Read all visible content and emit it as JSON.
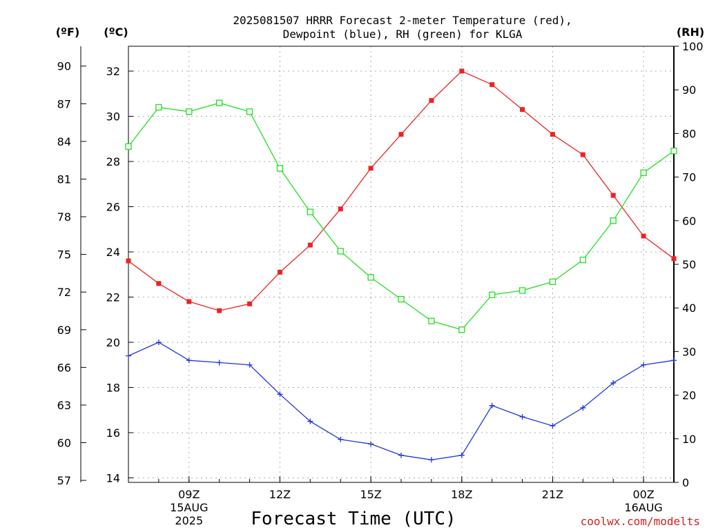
{
  "chart_data": {
    "type": "line",
    "title_lines": [
      "2025081507 HRRR Forecast 2-meter Temperature (red),",
      "Dewpoint (blue), RH (green) for KLGA"
    ],
    "xlabel": "Forecast Time (UTC)",
    "credit": "coolwx.com/modelts",
    "unit_labels": {
      "fahrenheit": "(ºF)",
      "celsius": "(ºC)",
      "rh": "(RH)"
    },
    "x_hours_utc": [
      7,
      8,
      9,
      10,
      11,
      12,
      13,
      14,
      15,
      16,
      17,
      18,
      19,
      20,
      21,
      22,
      23,
      24,
      25
    ],
    "xlim": [
      7,
      25
    ],
    "x_ticks": [
      {
        "hour": 9,
        "lines": [
          "09Z",
          "15AUG",
          "2025"
        ]
      },
      {
        "hour": 12,
        "lines": [
          "12Z"
        ]
      },
      {
        "hour": 15,
        "lines": [
          "15Z"
        ]
      },
      {
        "hour": 18,
        "lines": [
          "18Z"
        ]
      },
      {
        "hour": 21,
        "lines": [
          "21Z"
        ]
      },
      {
        "hour": 24,
        "lines": [
          "00Z",
          "16AUG"
        ]
      }
    ],
    "ylim_celsius": [
      13.8,
      33.1
    ],
    "celsius_ticks": [
      14,
      16,
      18,
      20,
      22,
      24,
      26,
      28,
      30,
      32
    ],
    "fahrenheit_ticks": [
      57,
      60,
      63,
      66,
      69,
      72,
      75,
      78,
      81,
      84,
      87,
      90
    ],
    "ylim_rh": [
      0,
      100
    ],
    "rh_ticks": [
      0,
      10,
      20,
      30,
      40,
      50,
      60,
      70,
      80,
      90,
      100
    ],
    "grid": true,
    "series": [
      {
        "name": "Temperature",
        "axis": "celsius",
        "color": "#ee2222",
        "marker": "filled-square",
        "values": [
          23.6,
          22.6,
          21.8,
          21.4,
          21.7,
          23.1,
          24.3,
          25.9,
          27.7,
          29.2,
          30.7,
          32.0,
          31.4,
          30.3,
          29.2,
          28.3,
          26.5,
          24.7,
          23.7
        ]
      },
      {
        "name": "Dewpoint",
        "axis": "celsius",
        "color": "#2233dd",
        "marker": "plus",
        "values": [
          19.4,
          20.0,
          19.2,
          19.1,
          19.0,
          17.7,
          16.5,
          15.7,
          15.5,
          15.0,
          14.8,
          15.0,
          17.2,
          16.7,
          16.3,
          17.1,
          18.2,
          19.0,
          19.2
        ]
      },
      {
        "name": "RH",
        "axis": "rh",
        "color": "#22dd22",
        "marker": "open-square",
        "values": [
          77,
          86,
          85,
          87,
          85,
          72,
          62,
          53,
          47,
          42,
          37,
          35,
          43,
          44,
          46,
          51,
          60,
          71,
          76
        ]
      }
    ]
  }
}
